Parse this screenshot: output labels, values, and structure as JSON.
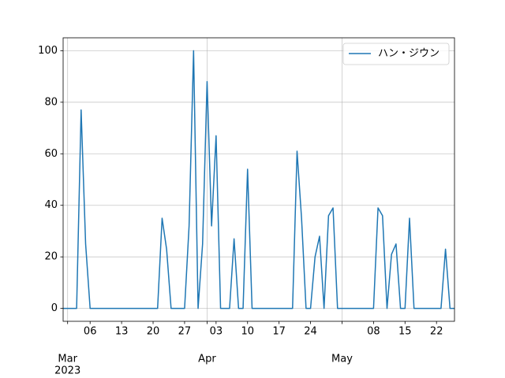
{
  "chart_data": {
    "type": "line",
    "x": [
      "2023-02-28",
      "2023-03-01",
      "2023-03-02",
      "2023-03-03",
      "2023-03-04",
      "2023-03-05",
      "2023-03-06",
      "2023-03-07",
      "2023-03-08",
      "2023-03-09",
      "2023-03-10",
      "2023-03-11",
      "2023-03-12",
      "2023-03-13",
      "2023-03-14",
      "2023-03-15",
      "2023-03-16",
      "2023-03-17",
      "2023-03-18",
      "2023-03-19",
      "2023-03-20",
      "2023-03-21",
      "2023-03-22",
      "2023-03-23",
      "2023-03-24",
      "2023-03-25",
      "2023-03-26",
      "2023-03-27",
      "2023-03-28",
      "2023-03-29",
      "2023-03-30",
      "2023-03-31",
      "2023-04-01",
      "2023-04-02",
      "2023-04-03",
      "2023-04-04",
      "2023-04-05",
      "2023-04-06",
      "2023-04-07",
      "2023-04-08",
      "2023-04-09",
      "2023-04-10",
      "2023-04-11",
      "2023-04-12",
      "2023-04-13",
      "2023-04-14",
      "2023-04-15",
      "2023-04-16",
      "2023-04-17",
      "2023-04-18",
      "2023-04-19",
      "2023-04-20",
      "2023-04-21",
      "2023-04-22",
      "2023-04-23",
      "2023-04-24",
      "2023-04-25",
      "2023-04-26",
      "2023-04-27",
      "2023-04-28",
      "2023-04-29",
      "2023-04-30",
      "2023-05-01",
      "2023-05-02",
      "2023-05-03",
      "2023-05-04",
      "2023-05-05",
      "2023-05-06",
      "2023-05-07",
      "2023-05-08",
      "2023-05-09",
      "2023-05-10",
      "2023-05-11",
      "2023-05-12",
      "2023-05-13",
      "2023-05-14",
      "2023-05-15",
      "2023-05-16",
      "2023-05-17",
      "2023-05-18",
      "2023-05-19",
      "2023-05-20",
      "2023-05-21",
      "2023-05-22",
      "2023-05-23",
      "2023-05-24",
      "2023-05-25",
      "2023-05-26"
    ],
    "series": [
      {
        "name": "ハン・ジウン",
        "color": "#1f77b4",
        "values": [
          0,
          0,
          0,
          0,
          77,
          25,
          0,
          0,
          0,
          0,
          0,
          0,
          0,
          0,
          0,
          0,
          0,
          0,
          0,
          0,
          0,
          0,
          35,
          23,
          0,
          0,
          0,
          0,
          32,
          100,
          0,
          25,
          88,
          32,
          67,
          0,
          0,
          0,
          27,
          0,
          0,
          54,
          0,
          0,
          0,
          0,
          0,
          0,
          0,
          0,
          0,
          0,
          61,
          35,
          0,
          0,
          20,
          28,
          0,
          36,
          39,
          0,
          0,
          0,
          0,
          0,
          0,
          0,
          0,
          0,
          39,
          36,
          0,
          21,
          25,
          0,
          0,
          35,
          0,
          0,
          0,
          0,
          0,
          0,
          0,
          23,
          0,
          0
        ]
      }
    ],
    "xlim": [
      "2023-02-28",
      "2023-05-26"
    ],
    "xticks": [
      {
        "value": "2023-03-06",
        "label": "06"
      },
      {
        "value": "2023-03-13",
        "label": "13"
      },
      {
        "value": "2023-03-20",
        "label": "20"
      },
      {
        "value": "2023-03-27",
        "label": "27"
      },
      {
        "value": "2023-04-03",
        "label": "03"
      },
      {
        "value": "2023-04-10",
        "label": "10"
      },
      {
        "value": "2023-04-17",
        "label": "17"
      },
      {
        "value": "2023-04-24",
        "label": "24"
      },
      {
        "value": "2023-05-08",
        "label": "08"
      },
      {
        "value": "2023-05-15",
        "label": "15"
      },
      {
        "value": "2023-05-22",
        "label": "22"
      }
    ],
    "month_ticks": [
      {
        "value": "2023-03-01",
        "label": "Mar"
      },
      {
        "value": "2023-04-01",
        "label": "Apr"
      },
      {
        "value": "2023-05-01",
        "label": "May"
      }
    ],
    "year_label": "2023",
    "ylim": [
      -5,
      105
    ],
    "yticks": [
      0,
      20,
      40,
      60,
      80,
      100
    ],
    "grid": true,
    "legend": "upper right"
  }
}
